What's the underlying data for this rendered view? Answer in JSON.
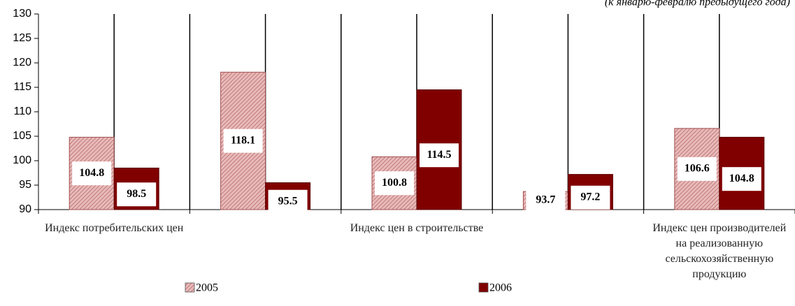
{
  "chart_data": {
    "type": "bar",
    "title": "(к январю-февралю предыдущего года)",
    "categories": [
      "Индекс потребительских цен",
      null,
      "Индекс цен в строительстве",
      null,
      "Индекс цен производителей на реализованную сельскохозяйственную продукцию"
    ],
    "series": [
      {
        "name": "2005",
        "color": "#d9a3a3",
        "values": [
          104.8,
          118.1,
          100.8,
          93.7,
          106.6
        ]
      },
      {
        "name": "2006",
        "color": "#800000",
        "values": [
          98.5,
          95.5,
          114.5,
          97.2,
          104.8
        ]
      }
    ],
    "ylim": [
      90,
      130
    ],
    "yticks": [
      90,
      95,
      100,
      105,
      110,
      115,
      120,
      125,
      130
    ],
    "legend": "bottom"
  }
}
